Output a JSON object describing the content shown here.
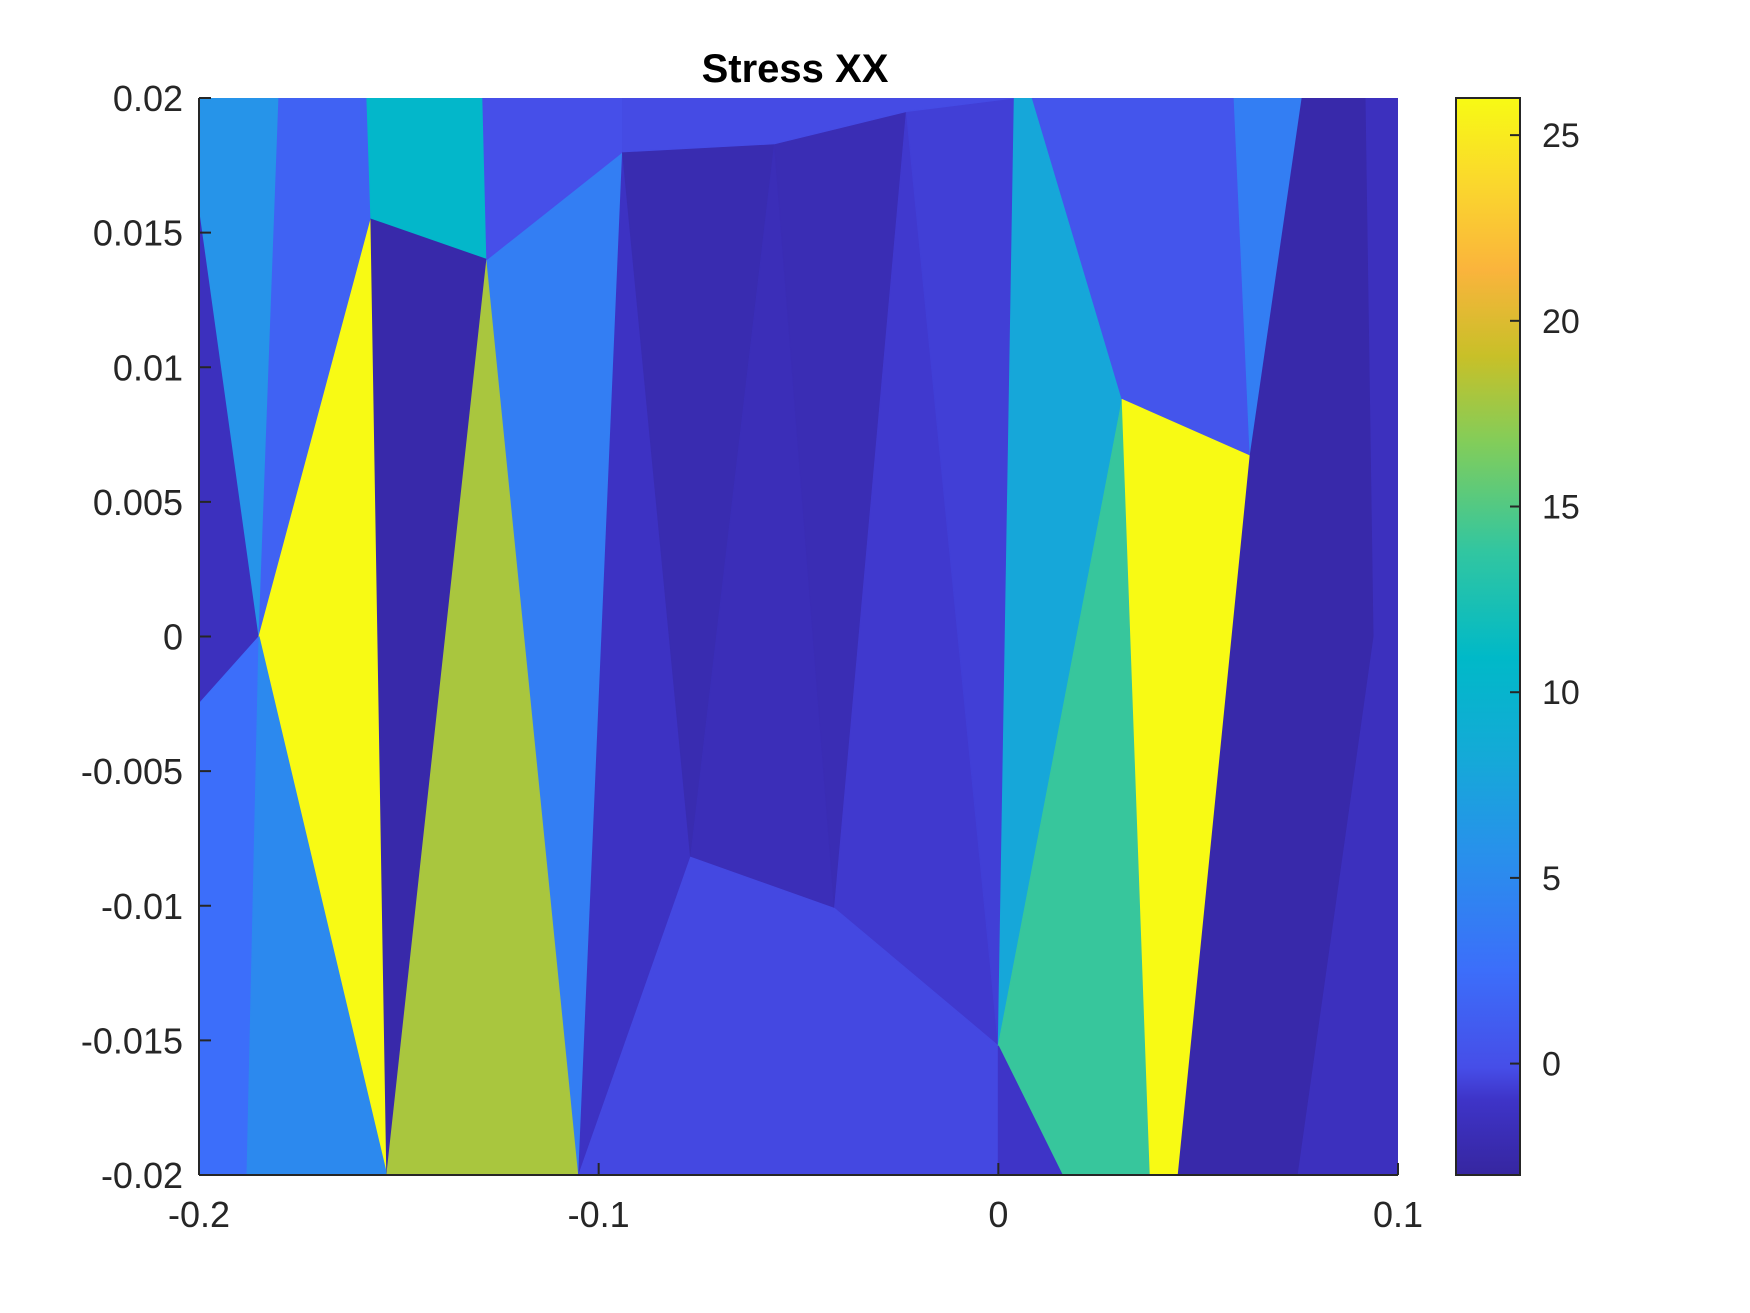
{
  "chart_data": {
    "type": "heatmap",
    "subtype": "patch-contour",
    "title": "Stress XX",
    "xlabel": "",
    "ylabel": "",
    "xlim": [
      -0.2,
      0.1
    ],
    "ylim": [
      -0.02,
      0.02
    ],
    "x_ticks": [
      -0.2,
      -0.1,
      0,
      0.1
    ],
    "x_tick_labels": [
      "-0.2",
      "-0.1",
      "0",
      "0.1"
    ],
    "y_ticks": [
      0.02,
      0.015,
      0.01,
      0.005,
      0,
      -0.005,
      -0.01,
      -0.015,
      -0.02
    ],
    "y_tick_labels": [
      "0.02",
      "0.015",
      "0.01",
      "0.005",
      "0",
      "-0.005",
      "-0.01",
      "-0.015",
      "-0.02"
    ],
    "colorbar": {
      "colormap": "parula",
      "clim": [
        -3,
        26
      ],
      "ticks": [
        25,
        20,
        15,
        10,
        5,
        0
      ],
      "tick_labels": [
        "25",
        "20",
        "15",
        "10",
        "5",
        "0"
      ]
    },
    "grid": false,
    "patches": [
      {
        "value": -1.5,
        "polygon": [
          [
            -0.2,
            0.02
          ],
          [
            -0.185,
            0.02
          ],
          [
            -0.185,
            -0.02
          ],
          [
            -0.2,
            -0.02
          ]
        ]
      },
      {
        "value": 6,
        "polygon": [
          [
            -0.2,
            0.02
          ],
          [
            -0.18,
            0.02
          ],
          [
            -0.185,
            0.0
          ],
          [
            -0.2,
            0.016
          ]
        ]
      },
      {
        "value": 2.5,
        "polygon": [
          [
            -0.2,
            -0.0025
          ],
          [
            -0.185,
            0.0
          ],
          [
            -0.188,
            -0.02
          ],
          [
            -0.2,
            -0.02
          ]
        ]
      },
      {
        "value": 1.5,
        "polygon": [
          [
            -0.18,
            0.02
          ],
          [
            -0.158,
            0.02
          ],
          [
            -0.157,
            0.0155
          ],
          [
            -0.185,
            0.0
          ]
        ]
      },
      {
        "value": 26,
        "polygon": [
          [
            -0.157,
            0.0155
          ],
          [
            -0.185,
            0.0
          ],
          [
            -0.153,
            -0.02
          ]
        ]
      },
      {
        "value": 5,
        "polygon": [
          [
            -0.185,
            0.0
          ],
          [
            -0.153,
            -0.02
          ],
          [
            -0.188,
            -0.02
          ]
        ]
      },
      {
        "value": 10.5,
        "polygon": [
          [
            -0.158,
            0.02
          ],
          [
            -0.129,
            0.02
          ],
          [
            -0.128,
            0.014
          ],
          [
            -0.157,
            0.0155
          ]
        ]
      },
      {
        "value": -2.5,
        "polygon": [
          [
            -0.157,
            0.0155
          ],
          [
            -0.128,
            0.014
          ],
          [
            -0.153,
            -0.02
          ]
        ]
      },
      {
        "value": 18,
        "polygon": [
          [
            -0.128,
            0.014
          ],
          [
            -0.153,
            -0.02
          ],
          [
            -0.105,
            -0.02
          ]
        ]
      },
      {
        "value": 4,
        "polygon": [
          [
            -0.128,
            0.014
          ],
          [
            -0.094,
            0.018
          ],
          [
            -0.105,
            -0.02
          ]
        ]
      },
      {
        "value": 0,
        "polygon": [
          [
            -0.129,
            0.02
          ],
          [
            -0.094,
            0.02
          ],
          [
            -0.094,
            0.018
          ],
          [
            -0.128,
            0.014
          ]
        ]
      },
      {
        "value": -1.2,
        "polygon": [
          [
            -0.094,
            0.018
          ],
          [
            -0.077,
            -0.0082
          ],
          [
            -0.105,
            -0.02
          ]
        ]
      },
      {
        "value": -2.2,
        "polygon": [
          [
            -0.094,
            0.018
          ],
          [
            -0.056,
            0.0183
          ],
          [
            -0.077,
            -0.0082
          ]
        ]
      },
      {
        "value": -1.8,
        "polygon": [
          [
            -0.056,
            0.0183
          ],
          [
            -0.041,
            -0.0101
          ],
          [
            -0.077,
            -0.0082
          ]
        ]
      },
      {
        "value": -2.0,
        "polygon": [
          [
            -0.056,
            0.0183
          ],
          [
            -0.023,
            0.0195
          ],
          [
            -0.041,
            -0.0101
          ]
        ]
      },
      {
        "value": -0.8,
        "polygon": [
          [
            -0.023,
            0.0195
          ],
          [
            0.0,
            -0.0152
          ],
          [
            -0.041,
            -0.0101
          ]
        ]
      },
      {
        "value": -0.6,
        "polygon": [
          [
            -0.023,
            0.0195
          ],
          [
            0.004,
            0.02
          ],
          [
            0.0,
            -0.0152
          ]
        ]
      },
      {
        "value": -0.2,
        "polygon": [
          [
            -0.094,
            0.02
          ],
          [
            0.004,
            0.02
          ],
          [
            -0.023,
            0.0195
          ],
          [
            -0.056,
            0.0183
          ],
          [
            -0.094,
            0.018
          ]
        ]
      },
      {
        "value": -0.3,
        "polygon": [
          [
            -0.105,
            -0.02
          ],
          [
            -0.077,
            -0.0082
          ],
          [
            -0.041,
            -0.0101
          ],
          [
            0.0,
            -0.0152
          ],
          [
            0.0,
            -0.02
          ]
        ]
      },
      {
        "value": 8,
        "polygon": [
          [
            0.004,
            0.02
          ],
          [
            0.0085,
            0.02
          ],
          [
            0.031,
            0.0088
          ],
          [
            0.0,
            -0.0152
          ]
        ]
      },
      {
        "value": 14,
        "polygon": [
          [
            0.031,
            0.0088
          ],
          [
            0.0,
            -0.0152
          ],
          [
            0.016,
            -0.02
          ],
          [
            0.038,
            -0.02
          ]
        ]
      },
      {
        "value": -1.0,
        "polygon": [
          [
            0.0,
            -0.0152
          ],
          [
            0.016,
            -0.02
          ],
          [
            0.0,
            -0.02
          ]
        ]
      },
      {
        "value": 0.5,
        "polygon": [
          [
            0.0085,
            0.02
          ],
          [
            0.059,
            0.02
          ],
          [
            0.063,
            0.0067
          ],
          [
            0.031,
            0.0088
          ]
        ]
      },
      {
        "value": 26,
        "polygon": [
          [
            0.031,
            0.0088
          ],
          [
            0.063,
            0.0067
          ],
          [
            0.045,
            -0.02
          ],
          [
            0.038,
            -0.02
          ]
        ]
      },
      {
        "value": 4,
        "polygon": [
          [
            0.059,
            0.02
          ],
          [
            0.076,
            0.02
          ],
          [
            0.063,
            0.0067
          ]
        ]
      },
      {
        "value": -2.5,
        "polygon": [
          [
            0.076,
            0.02
          ],
          [
            0.092,
            0.02
          ],
          [
            0.094,
            0.0
          ],
          [
            0.075,
            -0.02
          ],
          [
            0.045,
            -0.02
          ],
          [
            0.063,
            0.0067
          ]
        ]
      },
      {
        "value": -1.5,
        "polygon": [
          [
            0.092,
            0.02
          ],
          [
            0.1,
            0.02
          ],
          [
            0.1,
            -0.02
          ],
          [
            0.075,
            -0.02
          ],
          [
            0.094,
            0.0
          ]
        ]
      }
    ]
  }
}
